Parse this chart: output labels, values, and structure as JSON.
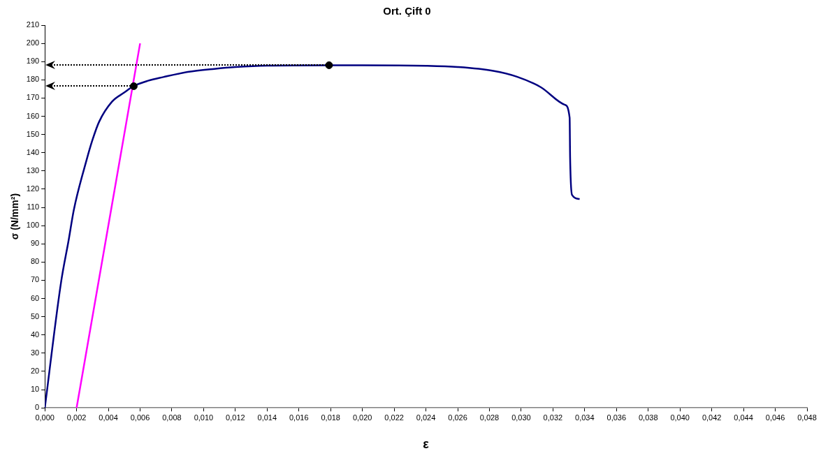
{
  "chart_data": {
    "type": "line",
    "title": "Ort. Çift 0",
    "xlabel": "ε",
    "ylabel": "σ (N/mm²)",
    "series": [
      {
        "color": "#000080",
        "x": [
          0,
          0.00102,
          0.0015,
          0.00183,
          0.00263,
          0.003,
          0.00342,
          0.00423,
          0.005,
          0.00558,
          0.0065,
          0.00746,
          0.009,
          0.01067,
          0.012,
          0.014,
          0.018,
          0.02,
          0.024,
          0.026,
          0.02824,
          0.02973,
          0.03124,
          0.03275,
          0.03305,
          0.03308,
          0.0332,
          0.03368
        ],
        "values": [
          0,
          68.8,
          92,
          108.8,
          136,
          147,
          157,
          168,
          173,
          176.5,
          179.5,
          181.5,
          184.3,
          186,
          187,
          187.8,
          188,
          188,
          187.7,
          187,
          184.9,
          181.7,
          175.9,
          166.3,
          159.2,
          137.4,
          116.9,
          114.6
        ]
      },
      {
        "color": "#ff00ff",
        "x": [
          0.002,
          0.006
        ],
        "values": [
          0,
          200
        ]
      },
      {
        "type": "scatter",
        "color": "#000000",
        "marker": "circle",
        "x": [
          0.0056,
          0.0179
        ],
        "values": [
          176.5,
          188
        ]
      }
    ],
    "xlim": [
      0,
      0.048
    ],
    "xticks": [
      {
        "value": 0,
        "label": "0,000"
      },
      {
        "value": 0.002,
        "label": "0,002"
      },
      {
        "value": 0.004,
        "label": "0,004"
      },
      {
        "value": 0.006,
        "label": "0,006"
      },
      {
        "value": 0.008,
        "label": "0,008"
      },
      {
        "value": 0.01,
        "label": "0,010"
      },
      {
        "value": 0.012,
        "label": "0,012"
      },
      {
        "value": 0.014,
        "label": "0,014"
      },
      {
        "value": 0.016,
        "label": "0,016"
      },
      {
        "value": 0.018,
        "label": "0,018"
      },
      {
        "value": 0.02,
        "label": "0,020"
      },
      {
        "value": 0.022,
        "label": "0,022"
      },
      {
        "value": 0.024,
        "label": "0,024"
      },
      {
        "value": 0.026,
        "label": "0,026"
      },
      {
        "value": 0.028,
        "label": "0,028"
      },
      {
        "value": 0.03,
        "label": "0,030"
      },
      {
        "value": 0.032,
        "label": "0,032"
      },
      {
        "value": 0.034,
        "label": "0,034"
      },
      {
        "value": 0.036,
        "label": "0,036"
      },
      {
        "value": 0.038,
        "label": "0,038"
      },
      {
        "value": 0.04,
        "label": "0,040"
      },
      {
        "value": 0.042,
        "label": "0,042"
      },
      {
        "value": 0.044,
        "label": "0,044"
      },
      {
        "value": 0.046,
        "label": "0,046"
      },
      {
        "value": 0.048,
        "label": "0,048"
      }
    ],
    "ylim": [
      0,
      210
    ],
    "yticks": [
      0,
      10,
      20,
      30,
      40,
      50,
      60,
      70,
      80,
      90,
      100,
      110,
      120,
      130,
      140,
      150,
      160,
      170,
      180,
      190,
      200,
      210
    ],
    "grid": false,
    "legend": false
  }
}
